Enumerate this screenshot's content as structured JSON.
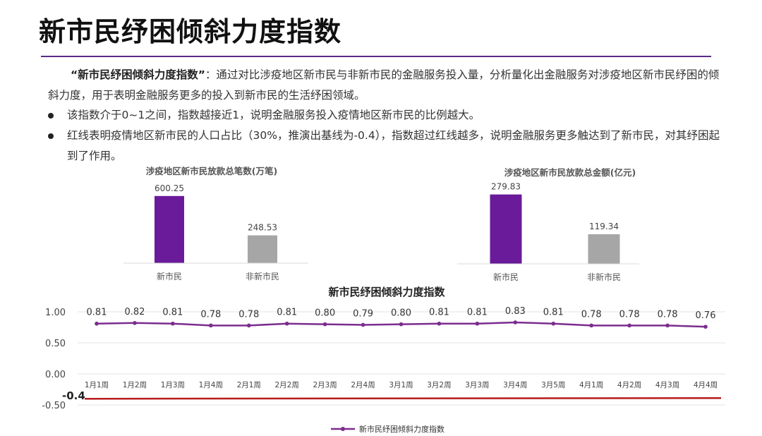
{
  "page": {
    "title": "新市民纾困倾斜力度指数",
    "intro_term": "“新市民纾困倾斜力度指数”",
    "intro_text": "：通过对比涉疫地区新市民与非新市民的金融服务投入量，分析量化出金融服务对涉疫地区新市民纾困的倾斜力度，用于表明金融服务更多的投入到新市民的生活纾困领域。",
    "bullets": [
      "该指数介于0~1之间，指数越接近1，说明金融服务投入疫情地区新市民的比例越大。",
      "红线表明疫情地区新市民的人口占比（30%，推演出基线为-0.4），指数超过红线越多，说明金融服务更多触达到了新市民，对其纾困起到了作用。"
    ]
  },
  "colors": {
    "primary": "#6a1b9a",
    "secondary": "#a6a6a6",
    "line": "#7b2d8e",
    "baseline": "#b71c1c",
    "rule": "#5b2a86"
  },
  "chart_data": [
    {
      "type": "bar",
      "title": "涉疫地区新市民放款总笔数(万笔)",
      "categories": [
        "新市民",
        "非新市民"
      ],
      "values": [
        600.25,
        248.53
      ],
      "value_labels": [
        "600.25",
        "248.53"
      ],
      "ylim": [
        0,
        700
      ]
    },
    {
      "type": "bar",
      "title": "涉疫地区新市民放款总金额(亿元)",
      "categories": [
        "新市民",
        "非新市民"
      ],
      "values": [
        279.83,
        119.34
      ],
      "value_labels": [
        "279.83",
        "119.34"
      ],
      "ylim": [
        0,
        330
      ]
    },
    {
      "type": "line",
      "title": "新市民纾困倾斜力度指数",
      "categories": [
        "1月1周",
        "1月2周",
        "1月3周",
        "1月4周",
        "2月1周",
        "2月2周",
        "2月3周",
        "2月4周",
        "3月1周",
        "3月2周",
        "3月3周",
        "3月4周",
        "3月5周",
        "4月1周",
        "4月2周",
        "4月3周",
        "4月4周"
      ],
      "series": [
        {
          "name": "新市民纾困倾斜力度指数",
          "values": [
            0.81,
            0.82,
            0.81,
            0.78,
            0.78,
            0.81,
            0.8,
            0.79,
            0.8,
            0.81,
            0.81,
            0.83,
            0.81,
            0.78,
            0.78,
            0.78,
            0.76
          ],
          "value_labels": [
            "0.81",
            "0.82",
            "0.81",
            "0.78",
            "0.78",
            "0.81",
            "0.80",
            "0.79",
            "0.80",
            "0.81",
            "0.81",
            "0.83",
            "0.81",
            "0.78",
            "0.78",
            "0.78",
            "0.76"
          ]
        }
      ],
      "ylim": [
        -0.5,
        1.0
      ],
      "yticks": [
        1.0,
        0.5,
        0.0,
        -0.5
      ],
      "ytick_labels": [
        "1.00",
        "0.50",
        "0.00",
        "-0.50"
      ],
      "baseline": {
        "value": -0.4,
        "label": "-0.4"
      },
      "legend": "bottom-center",
      "grid": true
    }
  ]
}
